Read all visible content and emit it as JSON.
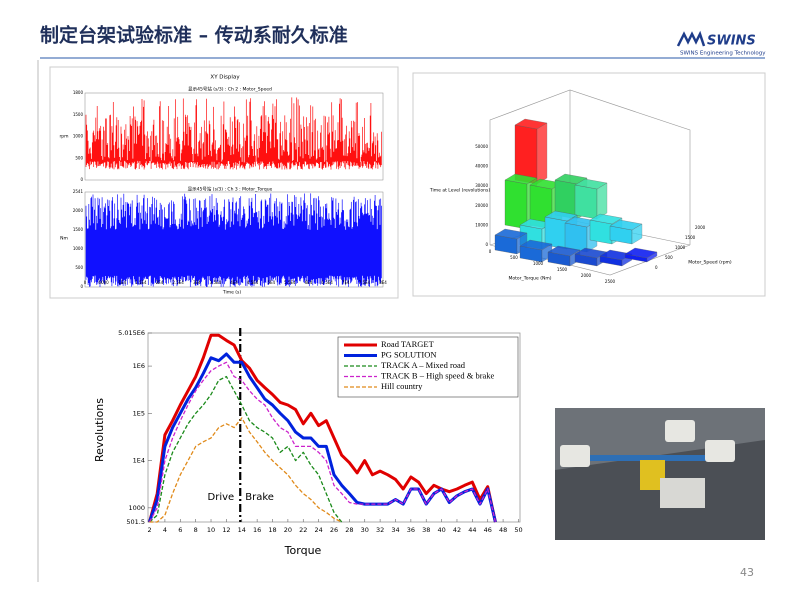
{
  "header": {
    "title": "制定台架试验标准 – 传动系耐久标准",
    "logo": "SWINS",
    "logo_subtitle": "SWINS Engineering Technology"
  },
  "screenshot_xy": {
    "title": "XY Display",
    "subtitle_top": "显示45号站 (s/3) : Ch 2 : Motor_Speed",
    "subtitle_bottom": "显示45号站 (s/3) : Ch 3 : Motor_Torque",
    "ylabel_top": "rpm",
    "ylabel_bottom": "Nm",
    "xlabel": "Time (s)",
    "yticks_top": [
      "1800",
      "1500",
      "1000",
      "500",
      "0"
    ],
    "yticks_bottom": [
      "2541",
      "2000",
      "1500",
      "1000",
      "500",
      "0"
    ],
    "xticks": [
      "0",
      "6000",
      "1E4",
      "1.5E4",
      "2E4",
      "2.5E4",
      "3E4",
      "3.5E4",
      "4E4",
      "4.5E4",
      "5E4",
      "5.5E4",
      "6E4",
      "6.5E4",
      "7E4",
      "7.5E4",
      "8E4"
    ]
  },
  "screenshot_3d": {
    "zlabel": "Time at Level (revolutions)",
    "xlabel": "Motor_Torque (Nm)",
    "ylabel": "Motor_Speed (rpm)",
    "zticks": [
      "50000",
      "40000",
      "30000",
      "20000",
      "10000",
      "0"
    ],
    "xticks": [
      "0",
      "500",
      "1000",
      "1500",
      "2000",
      "2500"
    ],
    "yticks": [
      "2000",
      "1500",
      "1000",
      "500",
      "0"
    ]
  },
  "chart_data": {
    "type": "line",
    "xlabel": "Torque",
    "ylabel": "Revolutions",
    "log_y": true,
    "xlim": [
      1.8,
      50.2
    ],
    "xticks": [
      2,
      4,
      6,
      8,
      10,
      12,
      14,
      16,
      18,
      20,
      22,
      24,
      26,
      28,
      30,
      32,
      34,
      36,
      38,
      40,
      42,
      44,
      46,
      48,
      50
    ],
    "ylim": [
      501.5,
      5015000
    ],
    "yticks": [
      {
        "value": 5015000,
        "label": "5.015E6"
      },
      {
        "value": 1000000,
        "label": "1E6"
      },
      {
        "value": 100000,
        "label": "1E5"
      },
      {
        "value": 10000,
        "label": "1E4"
      },
      1000,
      501.5
    ],
    "x": [
      2,
      3,
      4,
      5,
      6,
      7,
      8,
      9,
      10,
      11,
      12,
      13,
      14,
      15,
      16,
      17,
      18,
      19,
      20,
      21,
      22,
      23,
      24,
      25,
      26,
      27,
      28,
      29,
      30,
      31,
      32,
      33,
      34,
      35,
      36,
      37,
      38,
      39,
      40,
      41,
      42,
      43,
      44,
      45,
      46,
      47
    ],
    "divider": {
      "x": 13.8,
      "left_label": "Drive",
      "right_label": "Brake"
    },
    "series": [
      {
        "name": "Road TARGET",
        "color": "#e00000",
        "width": 3,
        "dashed": false,
        "values": [
          501.5,
          2000,
          35000,
          70000,
          150000,
          300000,
          600000,
          1500000,
          4500000,
          4500000,
          3500000,
          2800000,
          1300000,
          900000,
          500000,
          350000,
          250000,
          170000,
          150000,
          120000,
          60000,
          100000,
          55000,
          70000,
          30000,
          13000,
          9000,
          5500,
          10000,
          5000,
          6000,
          5000,
          4000,
          2500,
          4500,
          3500,
          2000,
          3000,
          2500,
          2200,
          2500,
          3000,
          3500,
          1500,
          2800,
          501.5
        ]
      },
      {
        "name": "PG SOLUTION",
        "color": "#0022dd",
        "width": 3,
        "dashed": false,
        "values": [
          501.5,
          1500,
          20000,
          50000,
          100000,
          200000,
          350000,
          700000,
          1500000,
          1300000,
          1800000,
          1200000,
          1200000,
          600000,
          350000,
          200000,
          150000,
          100000,
          70000,
          40000,
          30000,
          30000,
          20000,
          20000,
          5000,
          3000,
          2000,
          1300,
          1200,
          1200,
          1200,
          1200,
          1500,
          1200,
          2500,
          2500,
          1200,
          2000,
          2500,
          1300,
          1800,
          2200,
          2500,
          1200,
          2500,
          501.5
        ]
      },
      {
        "name": "TRACK A – Mixed road",
        "color": "#1a8a1a",
        "width": 1.3,
        "dashed": true,
        "values": [
          501.5,
          700,
          5000,
          15000,
          30000,
          60000,
          100000,
          150000,
          250000,
          500000,
          600000,
          300000,
          150000,
          70000,
          50000,
          40000,
          30000,
          15000,
          20000,
          10000,
          15000,
          8000,
          5000,
          2000,
          800,
          501.5,
          null,
          null,
          null,
          null,
          null,
          null,
          null,
          null,
          null,
          null,
          null,
          null,
          null,
          null,
          null,
          null,
          null,
          null,
          null,
          null
        ]
      },
      {
        "name": "TRACK B – High speed & brake",
        "color": "#cc22cc",
        "width": 1.3,
        "dashed": true,
        "values": [
          501.5,
          1000,
          10000,
          30000,
          70000,
          150000,
          300000,
          500000,
          800000,
          1000000,
          1200000,
          600000,
          500000,
          300000,
          200000,
          150000,
          80000,
          50000,
          40000,
          20000,
          20000,
          20000,
          15000,
          10000,
          3000,
          2000,
          1300,
          1200,
          1200,
          1200,
          1200,
          1200,
          1500,
          1200,
          2500,
          2500,
          1200,
          2000,
          2500,
          1300,
          1800,
          2200,
          2500,
          1200,
          2500,
          501.5
        ]
      },
      {
        "name": "Hill country",
        "color": "#e08a1a",
        "width": 1.3,
        "dashed": true,
        "values": [
          501.5,
          501.5,
          700,
          2000,
          5000,
          10000,
          20000,
          25000,
          30000,
          50000,
          60000,
          50000,
          80000,
          40000,
          25000,
          15000,
          10000,
          7000,
          5000,
          3000,
          2000,
          1500,
          1000,
          800,
          600,
          501.5,
          null,
          null,
          null,
          null,
          null,
          null,
          null,
          null,
          null,
          null,
          null,
          null,
          null,
          null,
          null,
          null,
          null,
          null,
          null,
          null
        ]
      }
    ]
  },
  "page_number": "43"
}
